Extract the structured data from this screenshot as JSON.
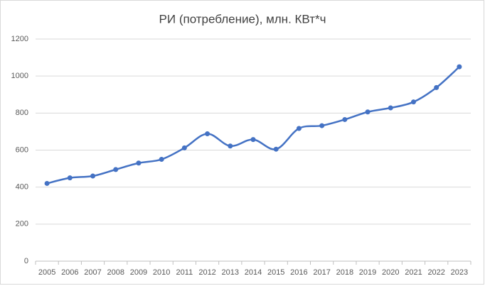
{
  "chart_data": {
    "type": "line",
    "title": "РИ (потребление), млн. КВт*ч",
    "categories": [
      "2005",
      "2006",
      "2007",
      "2008",
      "2009",
      "2010",
      "2011",
      "2012",
      "2013",
      "2014",
      "2015",
      "2016",
      "2017",
      "2018",
      "2019",
      "2020",
      "2021",
      "2022",
      "2023"
    ],
    "values": [
      420,
      450,
      460,
      495,
      530,
      550,
      612,
      688,
      622,
      657,
      605,
      717,
      732,
      765,
      806,
      828,
      860,
      938,
      1050
    ],
    "color": "#4472c4",
    "ylim": [
      0,
      1200
    ],
    "yticks": [
      0,
      200,
      400,
      600,
      800,
      1000,
      1200
    ],
    "grid": true
  }
}
